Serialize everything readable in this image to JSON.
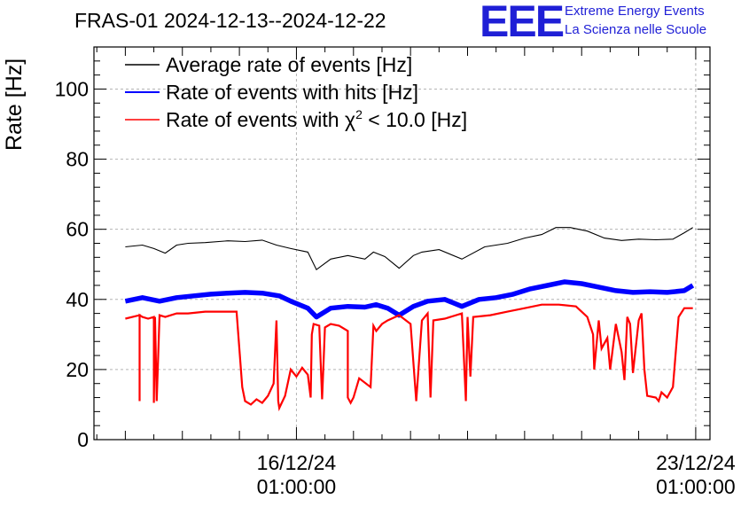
{
  "header": {
    "title": "FRAS-01 2024-12-13--2024-12-22",
    "logo_text": "EEE",
    "logo_line1": "Extreme Energy Events",
    "logo_line2": "La Scienza nelle Scuole"
  },
  "colors": {
    "average": "#000000",
    "hits": "#0000ff",
    "chi2": "#ff0000",
    "grid": "#b4b4b4",
    "logo": "#1f1fd6"
  },
  "chart_data": {
    "type": "line",
    "title": "FRAS-01 2024-12-13--2024-12-22",
    "xlabel": "",
    "ylabel": "Rate [Hz]",
    "xlim": [
      -3.55,
      7.25
    ],
    "ylim": [
      0,
      112
    ],
    "grid": true,
    "legend_position": "top-left",
    "yticks": [
      0,
      20,
      40,
      60,
      80,
      100
    ],
    "xticks": [
      {
        "value": 0,
        "date": "16/12/24",
        "time": "01:00:00"
      },
      {
        "value": 7,
        "date": "23/12/24",
        "time": "01:00:00"
      }
    ],
    "legend": [
      {
        "key": "average",
        "label_pre": "Average rate of events [Hz]",
        "sup": "",
        "label_post": ""
      },
      {
        "key": "hits",
        "label_pre": "Rate of events with hits [Hz]",
        "sup": "",
        "label_post": ""
      },
      {
        "key": "chi2",
        "label_pre": "Rate of events with χ",
        "sup": "2",
        "label_post": " < 10.0 [Hz]"
      }
    ],
    "series": [
      {
        "key": "average",
        "name": "Average rate of events [Hz]",
        "x": [
          -3.0,
          -2.7,
          -2.5,
          -2.3,
          -2.1,
          -1.9,
          -1.6,
          -1.2,
          -0.9,
          -0.6,
          -0.35,
          -0.1,
          0.2,
          0.35,
          0.6,
          0.9,
          1.2,
          1.35,
          1.55,
          1.8,
          2.05,
          2.2,
          2.5,
          2.9,
          3.3,
          3.7,
          4.0,
          4.3,
          4.55,
          4.8,
          5.1,
          5.4,
          5.7,
          6.0,
          6.3,
          6.6,
          6.8,
          6.95
        ],
        "y": [
          55.0,
          55.5,
          54.5,
          53.2,
          55.5,
          56.0,
          56.2,
          56.7,
          56.5,
          56.9,
          55.5,
          54.5,
          53.5,
          48.5,
          51.5,
          52.5,
          51.5,
          53.5,
          52.2,
          48.9,
          52.5,
          53.5,
          54.2,
          51.5,
          55.0,
          56.0,
          57.5,
          58.5,
          60.5,
          60.5,
          59.5,
          57.5,
          56.8,
          57.2,
          57.0,
          57.2,
          59.0,
          60.5
        ]
      },
      {
        "key": "hits",
        "name": "Rate of events with hits [Hz]",
        "x": [
          -3.0,
          -2.7,
          -2.4,
          -2.1,
          -1.8,
          -1.5,
          -1.2,
          -0.9,
          -0.6,
          -0.3,
          -0.1,
          0.2,
          0.35,
          0.6,
          0.9,
          1.2,
          1.4,
          1.6,
          1.8,
          2.05,
          2.3,
          2.6,
          2.9,
          3.2,
          3.5,
          3.8,
          4.1,
          4.4,
          4.7,
          5.0,
          5.3,
          5.6,
          5.9,
          6.2,
          6.5,
          6.8,
          6.95
        ],
        "y": [
          39.5,
          40.5,
          39.5,
          40.5,
          41.0,
          41.5,
          41.8,
          42.0,
          41.8,
          41.0,
          39.5,
          37.5,
          35.0,
          37.5,
          38.0,
          37.8,
          38.5,
          37.5,
          35.5,
          38.0,
          39.5,
          40.0,
          38.0,
          40.0,
          40.5,
          41.5,
          43.0,
          44.0,
          45.0,
          44.5,
          43.5,
          42.5,
          42.0,
          42.2,
          42.0,
          42.5,
          44.0
        ]
      },
      {
        "key": "chi2",
        "name": "Rate of events with χ2 < 10.0 [Hz]",
        "x": [
          -3.0,
          -2.75,
          -2.75,
          -2.75,
          -2.7,
          -2.6,
          -2.5,
          -2.5,
          -2.48,
          -2.45,
          -2.4,
          -2.3,
          -2.2,
          -2.1,
          -1.9,
          -1.6,
          -1.3,
          -1.05,
          -0.95,
          -0.9,
          -0.8,
          -0.7,
          -0.6,
          -0.5,
          -0.4,
          -0.35,
          -0.32,
          -0.3,
          -0.2,
          -0.1,
          0.0,
          0.1,
          0.2,
          0.25,
          0.27,
          0.3,
          0.4,
          0.45,
          0.5,
          0.55,
          0.6,
          0.75,
          0.9,
          0.9,
          0.95,
          1.0,
          1.1,
          1.3,
          1.35,
          1.4,
          1.5,
          1.6,
          1.8,
          2.0,
          2.1,
          2.2,
          2.3,
          2.35,
          2.4,
          2.6,
          2.9,
          2.97,
          3.0,
          3.05,
          3.1,
          3.4,
          3.7,
          4.0,
          4.3,
          4.6,
          4.9,
          5.1,
          5.2,
          5.22,
          5.3,
          5.35,
          5.45,
          5.5,
          5.6,
          5.7,
          5.75,
          5.8,
          5.85,
          5.9,
          6.0,
          6.05,
          6.1,
          6.15,
          6.3,
          6.35,
          6.4,
          6.5,
          6.6,
          6.7,
          6.8,
          6.95
        ],
        "y": [
          34.5,
          35.5,
          11.0,
          35.5,
          35.0,
          34.5,
          35.0,
          10.5,
          35.0,
          11.0,
          35.5,
          35.0,
          35.5,
          36.0,
          36.0,
          36.5,
          36.5,
          36.5,
          15.0,
          11.0,
          10.0,
          11.5,
          10.5,
          12.5,
          16.0,
          34.0,
          11.0,
          9.0,
          12.5,
          20.0,
          18.0,
          20.5,
          18.5,
          12.0,
          30.0,
          33.0,
          32.5,
          11.5,
          32.0,
          32.5,
          33.0,
          32.5,
          31.0,
          12.0,
          10.5,
          12.0,
          17.5,
          15.0,
          32.5,
          31.0,
          33.0,
          34.0,
          35.5,
          33.0,
          11.0,
          34.0,
          36.0,
          12.0,
          34.0,
          34.5,
          36.0,
          11.0,
          35.0,
          18.0,
          35.0,
          35.5,
          36.5,
          37.5,
          38.5,
          38.5,
          38.0,
          35.0,
          30.0,
          20.0,
          34.0,
          26.0,
          29.0,
          20.0,
          33.0,
          25.0,
          17.0,
          35.0,
          33.0,
          19.0,
          34.0,
          36.0,
          20.0,
          12.5,
          12.0,
          11.0,
          13.5,
          12.0,
          15.0,
          35.0,
          37.5,
          37.5
        ]
      }
    ]
  }
}
